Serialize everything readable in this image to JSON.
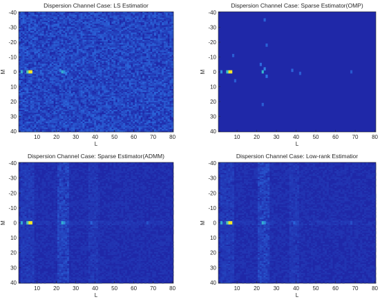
{
  "colors": {
    "background_low": "#1f28a8",
    "mid": "#2e74e6",
    "high": "#35c3c8",
    "peak": "#f5e52a",
    "axis": "#262626"
  },
  "chart_data": [
    {
      "type": "heatmap",
      "title": "Dispersion Channel Case: LS Estimatior",
      "xlabel": "L",
      "ylabel": "M",
      "xlim": [
        1,
        80
      ],
      "ylim": [
        -40,
        40
      ],
      "y_reversed": true,
      "xticks": [
        10,
        20,
        30,
        40,
        50,
        60,
        70,
        80
      ],
      "yticks": [
        -40,
        -30,
        -20,
        -10,
        0,
        10,
        20,
        30,
        40
      ],
      "colormap": "parula",
      "noise_level": 0.32,
      "peaks": [
        {
          "L": 6,
          "M": 0,
          "value": 1.0
        },
        {
          "L": 7,
          "M": 0,
          "value": 1.0
        },
        {
          "L": 5,
          "M": 0,
          "value": 0.75
        },
        {
          "L": 2,
          "M": 0,
          "value": 0.6
        },
        {
          "L": 23,
          "M": 0,
          "value": 0.62
        },
        {
          "L": 24,
          "M": 0,
          "value": 0.5
        },
        {
          "L": 22,
          "M": -1,
          "value": 0.45
        },
        {
          "L": 25,
          "M": 1,
          "value": 0.42
        }
      ]
    },
    {
      "type": "heatmap",
      "title": "Dispersion Channel Case: Sparse Estimator(OMP)",
      "xlabel": "L",
      "ylabel": "M",
      "xlim": [
        1,
        80
      ],
      "ylim": [
        -40,
        40
      ],
      "y_reversed": true,
      "xticks": [
        10,
        20,
        30,
        40,
        50,
        60,
        70,
        80
      ],
      "yticks": [
        -40,
        -30,
        -20,
        -10,
        0,
        10,
        20,
        30,
        40
      ],
      "colormap": "parula",
      "noise_level": 0.0,
      "peaks": [
        {
          "L": 6,
          "M": 0,
          "value": 1.0
        },
        {
          "L": 7,
          "M": 0,
          "value": 1.0
        },
        {
          "L": 5,
          "M": 0,
          "value": 0.7
        },
        {
          "L": 2,
          "M": 0,
          "value": 0.5
        },
        {
          "L": 23,
          "M": 0,
          "value": 0.65
        },
        {
          "L": 24,
          "M": -2,
          "value": 0.45
        },
        {
          "L": 25,
          "M": 3,
          "value": 0.4
        },
        {
          "L": 22,
          "M": -5,
          "value": 0.35
        },
        {
          "L": 24,
          "M": -35,
          "value": 0.3
        },
        {
          "L": 25,
          "M": -18,
          "value": 0.3
        },
        {
          "L": 23,
          "M": 22,
          "value": 0.28
        },
        {
          "L": 8,
          "M": -11,
          "value": 0.28
        },
        {
          "L": 9,
          "M": 6,
          "value": 0.28
        },
        {
          "L": 38,
          "M": -1,
          "value": 0.32
        },
        {
          "L": 42,
          "M": 1,
          "value": 0.28
        },
        {
          "L": 68,
          "M": 0,
          "value": 0.25
        }
      ]
    },
    {
      "type": "heatmap",
      "title": "Dispersion Channel Case: Sparse Estimator(ADMM)",
      "xlabel": "L",
      "ylabel": "M",
      "xlim": [
        1,
        80
      ],
      "ylim": [
        -40,
        40
      ],
      "y_reversed": true,
      "xticks": [
        10,
        20,
        30,
        40,
        50,
        60,
        70,
        80
      ],
      "yticks": [
        -40,
        -30,
        -20,
        -10,
        0,
        10,
        20,
        30,
        40
      ],
      "colormap": "parula",
      "noise_level": 0.08,
      "peaks": [
        {
          "L": 6,
          "M": 0,
          "value": 1.0
        },
        {
          "L": 7,
          "M": 0,
          "value": 1.0
        },
        {
          "L": 5,
          "M": 0,
          "value": 0.75
        },
        {
          "L": 2,
          "M": 0,
          "value": 0.6
        },
        {
          "L": 23,
          "M": 0,
          "value": 0.62
        },
        {
          "L": 24,
          "M": 0,
          "value": 0.5
        },
        {
          "L": 38,
          "M": 0,
          "value": 0.3
        },
        {
          "L": 67,
          "M": 0,
          "value": 0.22
        }
      ]
    },
    {
      "type": "heatmap",
      "title": "Dispersion Channel Case: Low-rank Estimatior",
      "xlabel": "L",
      "ylabel": "M",
      "xlim": [
        1,
        80
      ],
      "ylim": [
        -40,
        40
      ],
      "y_reversed": true,
      "xticks": [
        10,
        20,
        30,
        40,
        50,
        60,
        70,
        80
      ],
      "yticks": [
        -40,
        -30,
        -20,
        -10,
        0,
        10,
        20,
        30,
        40
      ],
      "colormap": "parula",
      "noise_level": 0.08,
      "peaks": [
        {
          "L": 6,
          "M": 0,
          "value": 1.0
        },
        {
          "L": 7,
          "M": 0,
          "value": 1.0
        },
        {
          "L": 5,
          "M": 0,
          "value": 0.75
        },
        {
          "L": 2,
          "M": 0,
          "value": 0.6
        },
        {
          "L": 23,
          "M": 0,
          "value": 0.62
        },
        {
          "L": 24,
          "M": 0,
          "value": 0.5
        },
        {
          "L": 39,
          "M": 0,
          "value": 0.3
        },
        {
          "L": 68,
          "M": 0,
          "value": 0.2
        }
      ]
    }
  ]
}
